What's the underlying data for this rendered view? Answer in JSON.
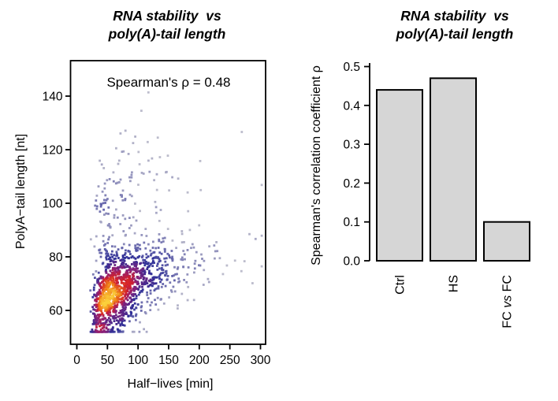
{
  "figure": {
    "background": "#ffffff",
    "text_color": "#000000",
    "axis_color": "#000000"
  },
  "scatter_panel": {
    "title_line1": "RNA stability  vs",
    "title_line2": "poly(A)-tail length",
    "annotation": "Spearman's ρ = 0.48",
    "xlabel": "Half−lives [min]",
    "ylabel": "PolyA−tail length [nt]"
  },
  "bar_panel": {
    "title_line1": "RNA stability  vs",
    "title_line2": "poly(A)-tail length",
    "ylabel": "Spearman's correlation coefficient ρ"
  },
  "chart_data": [
    {
      "type": "scatter",
      "title": "RNA stability vs poly(A)-tail length",
      "annotation": "Spearman's rho = 0.48",
      "spearman_rho": 0.48,
      "xlabel": "Half-lives [min]",
      "ylabel": "PolyA-tail length [nt]",
      "xticks": [
        0,
        50,
        100,
        150,
        200,
        250,
        300
      ],
      "yticks": [
        60,
        80,
        100,
        120,
        140
      ],
      "xlim": [
        -10,
        309
      ],
      "ylim": [
        47,
        153
      ],
      "grid": false,
      "point_style": "density-colored small squares (smoothed-density scatter)",
      "n_points": 1400,
      "density_palette": [
        "#bcbccc",
        "#2e2e97",
        "#8b2078",
        "#d4202a",
        "#f08418",
        "#fbd23c"
      ],
      "palette_positions": [
        0,
        0.32,
        0.58,
        0.76,
        0.89,
        1
      ],
      "generator": {
        "seed": 20240817,
        "x_model": "x = 14 + 54*exp(0.62*z1)",
        "y_model": "y = 63 + 10*ln(x/42) + 7.5*z2, 10% upper outliers +20..48",
        "x_clamp": [
          20,
          302
        ],
        "y_clamp": [
          52,
          152
        ]
      }
    },
    {
      "type": "bar",
      "title": "RNA stability vs poly(A)-tail length",
      "ylabel": "Spearman's correlation coefficient rho",
      "categories": [
        "Ctrl",
        "HS",
        "FC vs FC"
      ],
      "values": [
        0.44,
        0.47,
        0.1
      ],
      "yticks": [
        0.0,
        0.1,
        0.2,
        0.3,
        0.4,
        0.5
      ],
      "ytick_labels": [
        "0.0",
        "0.1",
        "0.2",
        "0.3",
        "0.4",
        "0.5"
      ],
      "ylim": [
        0,
        0.5
      ],
      "grid": false,
      "bar_fill": "#d6d6d6",
      "bar_stroke": "#000000",
      "legend": "none",
      "category_parts": [
        [
          {
            "text": "Ctrl",
            "italic": false
          }
        ],
        [
          {
            "text": "HS",
            "italic": false
          }
        ],
        [
          {
            "text": "FC ",
            "italic": false
          },
          {
            "text": "vs",
            "italic": true
          },
          {
            "text": " FC",
            "italic": false
          }
        ]
      ]
    }
  ]
}
